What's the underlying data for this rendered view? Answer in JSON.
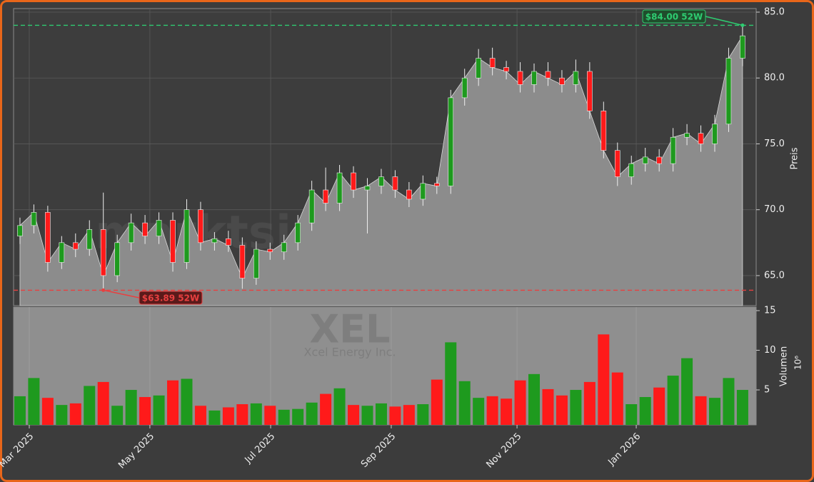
{
  "chart_data": [
    {
      "type": "candlestick",
      "watermark": "marktsignale.trade",
      "y_label": "Preis",
      "x": [
        0,
        1,
        2,
        3,
        4,
        5,
        6,
        7,
        8,
        9,
        10,
        11,
        12,
        13,
        14,
        15,
        16,
        17,
        18,
        19,
        20,
        21,
        22,
        23,
        24,
        25,
        26,
        27,
        28,
        29,
        30,
        31,
        32,
        33,
        34,
        35,
        36,
        37,
        38,
        39,
        40,
        41,
        42,
        43,
        44,
        45,
        46,
        47,
        48,
        49,
        50,
        51,
        52
      ],
      "open": [
        68.0,
        68.8,
        69.8,
        66.0,
        67.5,
        67.0,
        68.5,
        65.0,
        67.5,
        69.0,
        68.0,
        69.2,
        66.0,
        70.0,
        67.5,
        67.8,
        67.3,
        64.8,
        67.0,
        66.8,
        67.5,
        69.0,
        71.5,
        70.5,
        72.8,
        71.5,
        71.8,
        72.5,
        71.5,
        70.8,
        72.0,
        71.8,
        78.5,
        80.0,
        81.5,
        80.8,
        80.5,
        79.5,
        80.5,
        80.0,
        79.5,
        80.5,
        77.5,
        74.5,
        72.5,
        73.5,
        74.0,
        73.5,
        75.5,
        75.8,
        75.0,
        76.5,
        81.5
      ],
      "high": [
        69.4,
        70.4,
        70.3,
        68.0,
        68.2,
        69.2,
        71.3,
        68.1,
        69.7,
        69.6,
        69.8,
        69.8,
        70.8,
        70.6,
        68.3,
        68.4,
        67.9,
        67.6,
        67.5,
        68.1,
        69.6,
        72.2,
        73.2,
        73.4,
        73.3,
        72.4,
        73.1,
        73.0,
        72.1,
        72.6,
        72.5,
        79.1,
        80.7,
        82.2,
        82.3,
        81.3,
        81.2,
        81.1,
        81.2,
        80.6,
        81.4,
        81.2,
        78.2,
        75.1,
        74.1,
        74.7,
        74.6,
        76.2,
        76.5,
        76.4,
        77.2,
        82.3,
        84.0
      ],
      "low": [
        67.4,
        68.2,
        65.3,
        65.5,
        66.4,
        66.5,
        63.89,
        64.5,
        66.9,
        67.4,
        67.4,
        65.3,
        65.5,
        66.9,
        66.9,
        66.8,
        64.0,
        64.3,
        66.2,
        66.2,
        66.9,
        68.4,
        69.9,
        69.9,
        70.9,
        68.2,
        71.2,
        70.9,
        70.2,
        70.3,
        71.2,
        71.2,
        77.9,
        79.4,
        80.2,
        79.9,
        78.9,
        78.9,
        79.4,
        78.9,
        78.9,
        76.9,
        73.9,
        71.8,
        71.9,
        72.9,
        72.9,
        72.9,
        74.9,
        74.4,
        74.4,
        75.9,
        80.9
      ],
      "close": [
        68.8,
        69.8,
        66.0,
        67.5,
        67.0,
        68.5,
        65.0,
        67.5,
        69.0,
        68.0,
        69.2,
        66.0,
        70.0,
        67.5,
        67.8,
        67.3,
        64.8,
        67.0,
        66.8,
        67.5,
        69.0,
        71.5,
        70.5,
        72.8,
        71.5,
        71.8,
        72.5,
        71.5,
        70.8,
        72.0,
        71.8,
        78.5,
        80.0,
        81.5,
        80.8,
        80.5,
        79.5,
        80.5,
        80.0,
        79.5,
        80.5,
        77.5,
        74.5,
        72.5,
        73.5,
        74.0,
        73.5,
        75.5,
        75.8,
        75.0,
        76.5,
        81.5,
        83.2
      ],
      "colors": {
        "up": "#1e9a1e",
        "down": "#ff1a1a",
        "area": "#8c8c8c",
        "line": "#d8d8d8"
      },
      "xlim": [
        -0.46,
        52.98
      ],
      "ylim": [
        62.72,
        85.27
      ],
      "yticks": [
        {
          "value": 65,
          "label": "65.0"
        },
        {
          "value": 70,
          "label": "70.0"
        },
        {
          "value": 75,
          "label": "75.0"
        },
        {
          "value": 80,
          "label": "80.0"
        },
        {
          "value": 85,
          "label": "85.0"
        }
      ],
      "grid": true,
      "annotations": [
        {
          "label": "$84.00 52W",
          "value": 84.0,
          "x": 52,
          "color": "#2ecc71"
        },
        {
          "label": "$63.89 52W",
          "value": 63.89,
          "x": 6,
          "color": "#e84040"
        }
      ]
    },
    {
      "type": "bar",
      "title": "XEL",
      "subtitle": "Xcel Energy Inc.",
      "y_label": "Volumen",
      "y_unit": "10⁶",
      "values": [
        4.2,
        6.5,
        4.0,
        3.1,
        3.3,
        5.5,
        6.0,
        3.0,
        5.0,
        4.1,
        4.3,
        6.2,
        6.4,
        3.0,
        2.4,
        2.8,
        3.2,
        3.3,
        3.0,
        2.5,
        2.6,
        3.4,
        4.5,
        5.2,
        3.1,
        3.0,
        3.3,
        2.9,
        3.1,
        3.2,
        6.3,
        11.0,
        6.1,
        4.0,
        4.2,
        3.9,
        6.2,
        7.0,
        5.1,
        4.3,
        5.0,
        6.0,
        12.0,
        7.2,
        3.2,
        4.1,
        5.3,
        6.8,
        9.0,
        4.2,
        4.0,
        6.5,
        5.0
      ],
      "ylim": [
        0.59,
        15.45
      ],
      "yticks": [
        5,
        10,
        15
      ],
      "xticks": [
        {
          "value": 0.67,
          "label": "Mar 2025"
        },
        {
          "value": 9.35,
          "label": "May 2025"
        },
        {
          "value": 18.04,
          "label": "Jul 2025"
        },
        {
          "value": 26.72,
          "label": "Sep 2025"
        },
        {
          "value": 35.77,
          "label": "Nov 2025"
        },
        {
          "value": 44.35,
          "label": "Jan 2026"
        }
      ]
    }
  ]
}
